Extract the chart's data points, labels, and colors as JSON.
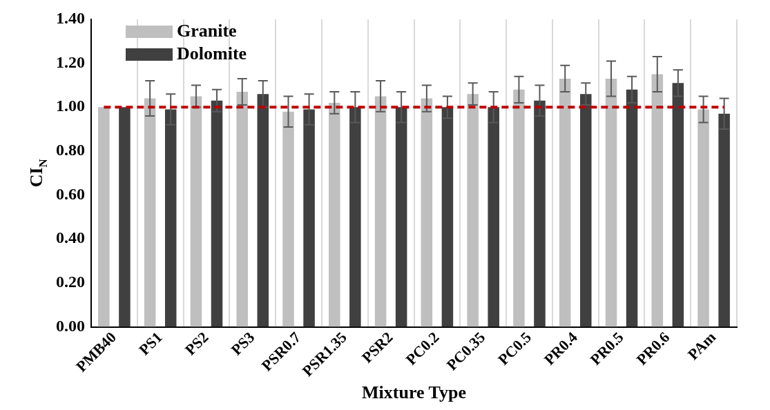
{
  "chart_data": {
    "type": "bar",
    "xlabel": "Mixture Type",
    "ylabel": "CI$_{N}$",
    "categories": [
      "PMB40",
      "PS1",
      "PS2",
      "PS3",
      "PSR0.7",
      "PSR1.35",
      "PSR2",
      "PC0.2",
      "PC0.35",
      "PC0.5",
      "PR0.4",
      "PR0.5",
      "PR0.6",
      "PAm"
    ],
    "series": [
      {
        "name": "Granite",
        "color": "#bfbfbf",
        "values": [
          1.0,
          1.04,
          1.05,
          1.07,
          0.98,
          1.02,
          1.05,
          1.04,
          1.06,
          1.08,
          1.13,
          1.13,
          1.15,
          0.99
        ],
        "errors": [
          null,
          0.08,
          0.05,
          0.06,
          0.07,
          0.05,
          0.07,
          0.06,
          0.05,
          0.06,
          0.06,
          0.08,
          0.08,
          0.06
        ]
      },
      {
        "name": "Dolomite",
        "color": "#404040",
        "values": [
          1.0,
          0.99,
          1.03,
          1.06,
          0.99,
          1.0,
          1.0,
          1.0,
          1.0,
          1.03,
          1.06,
          1.08,
          1.11,
          0.97
        ],
        "errors": [
          null,
          0.07,
          0.05,
          0.06,
          0.07,
          0.07,
          0.07,
          0.05,
          0.07,
          0.07,
          0.05,
          0.06,
          0.06,
          0.07
        ]
      }
    ],
    "ylim": [
      0,
      1.4
    ],
    "yticks": [
      {
        "value": 0,
        "label": "0.00"
      },
      {
        "value": 0.2,
        "label": "0.20"
      },
      {
        "value": 0.4,
        "label": "0.40"
      },
      {
        "value": 0.6,
        "label": "0.60"
      },
      {
        "value": 0.8,
        "label": "0.80"
      },
      {
        "value": 1,
        "label": "1.00"
      },
      {
        "value": 1.2,
        "label": "1.20"
      },
      {
        "value": 1.4,
        "label": "1.40"
      }
    ],
    "grid": "x",
    "legend": "top left",
    "ref_lines": [
      {
        "axis": "y",
        "value": 1,
        "color": "#c00000",
        "line_style": "dashed"
      }
    ]
  }
}
